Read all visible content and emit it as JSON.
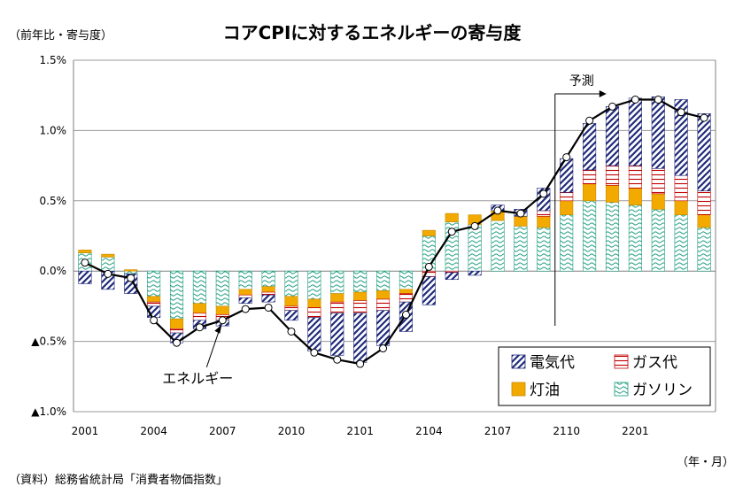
{
  "chart_data": {
    "type": "bar",
    "title": "コアCPIに対するエネルギーの寄与度",
    "ylabel": "（前年比・寄与度）",
    "xlabel": "（年・月）",
    "source": "（資料）総務省統計局「消費者物価指数」",
    "forecast_label": "予測",
    "line_annotation": "エネルギー",
    "ylim": [
      -1.0,
      1.5
    ],
    "y_ticks": [
      1.5,
      1.0,
      0.5,
      0.0,
      -0.5,
      -1.0
    ],
    "y_tick_labels": [
      "1.5%",
      "1.0%",
      "0.5%",
      "0.0%",
      "▲0.5%",
      "▲1.0%"
    ],
    "x_tick_labels": [
      "2001",
      "2004",
      "2007",
      "2010",
      "2101",
      "2104",
      "2107",
      "2110",
      "2201"
    ],
    "x_tick_every": 3,
    "forecast_start_index": 21,
    "categories": [
      "2001",
      "2002",
      "2003",
      "2004",
      "2005",
      "2006",
      "2007",
      "2008",
      "2009",
      "2010",
      "2011",
      "2012",
      "2101",
      "2102",
      "2103",
      "2104",
      "2105",
      "2106",
      "2107",
      "2108",
      "2109",
      "2110",
      "2111",
      "2112",
      "2201",
      "2202",
      "2203",
      "2204"
    ],
    "series": [
      {
        "name": "電気代",
        "key": "elec",
        "color": "#1f2a7a",
        "values": [
          -0.09,
          -0.13,
          -0.14,
          -0.08,
          -0.07,
          -0.06,
          -0.04,
          -0.04,
          -0.05,
          -0.07,
          -0.24,
          -0.3,
          -0.35,
          -0.25,
          -0.21,
          -0.2,
          -0.05,
          -0.03,
          0.04,
          0.05,
          0.16,
          0.24,
          0.33,
          0.42,
          0.48,
          0.51,
          0.54,
          0.55
        ]
      },
      {
        "name": "ガス代",
        "key": "gas",
        "color": "#c00000",
        "values": [
          0.0,
          0.0,
          0.0,
          -0.03,
          -0.03,
          -0.05,
          -0.04,
          -0.02,
          -0.02,
          -0.03,
          -0.07,
          -0.08,
          -0.09,
          -0.08,
          -0.06,
          -0.04,
          -0.01,
          0.0,
          0.0,
          0.0,
          0.04,
          0.06,
          0.1,
          0.14,
          0.16,
          0.18,
          0.18,
          0.17
        ]
      },
      {
        "name": "灯油",
        "key": "kero",
        "color": "#f2a900",
        "values": [
          0.02,
          0.02,
          0.01,
          -0.04,
          -0.07,
          -0.07,
          -0.06,
          -0.04,
          -0.04,
          -0.07,
          -0.06,
          -0.06,
          -0.06,
          -0.06,
          -0.03,
          0.04,
          0.06,
          0.07,
          0.07,
          0.07,
          0.08,
          0.1,
          0.12,
          0.12,
          0.12,
          0.11,
          0.1,
          0.09
        ]
      },
      {
        "name": "ガソリン",
        "key": "gaso",
        "color": "#1a9c7c",
        "values": [
          0.13,
          0.1,
          -0.02,
          -0.18,
          -0.34,
          -0.23,
          -0.25,
          -0.13,
          -0.11,
          -0.18,
          -0.2,
          -0.16,
          -0.15,
          -0.14,
          -0.13,
          0.25,
          0.35,
          0.33,
          0.36,
          0.32,
          0.31,
          0.4,
          0.5,
          0.49,
          0.47,
          0.44,
          0.4,
          0.31
        ]
      },
      {
        "name": "エネルギー",
        "key": "total",
        "color": "#000000",
        "values": [
          0.06,
          -0.02,
          -0.05,
          -0.35,
          -0.51,
          -0.4,
          -0.35,
          -0.27,
          -0.26,
          -0.43,
          -0.58,
          -0.63,
          -0.66,
          -0.55,
          -0.31,
          0.03,
          0.28,
          0.32,
          0.43,
          0.41,
          0.55,
          0.81,
          1.07,
          1.17,
          1.22,
          1.22,
          1.13,
          1.09
        ]
      }
    ],
    "legend": {
      "position": "bottom-right",
      "order": [
        "電気代",
        "ガス代",
        "灯油",
        "ガソリン"
      ]
    },
    "grid": true
  }
}
